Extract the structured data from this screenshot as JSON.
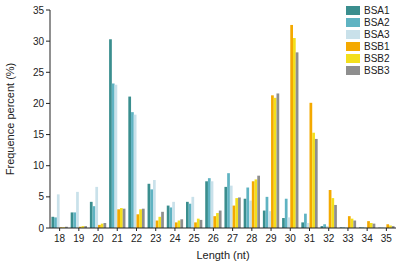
{
  "chart_data": {
    "type": "bar",
    "x_label": "Length (nt)",
    "y_label": "Frequence percent (%)",
    "categories": [
      "18",
      "19",
      "20",
      "21",
      "22",
      "23",
      "24",
      "25",
      "26",
      "27",
      "28",
      "29",
      "30",
      "31",
      "32",
      "33",
      "34",
      "35"
    ],
    "series": [
      {
        "name": "BSA1",
        "color": "#3a8e8e",
        "values": [
          1.8,
          2.5,
          4.2,
          30.3,
          21.1,
          7.1,
          3.6,
          4.2,
          7.5,
          6.6,
          4.7,
          2.8,
          1.6,
          0.9,
          0.3,
          0.1,
          0.1,
          0.05
        ]
      },
      {
        "name": "BSA2",
        "color": "#5fb3c2",
        "values": [
          1.7,
          2.5,
          3.5,
          23.2,
          18.6,
          6.2,
          3.3,
          3.9,
          8.0,
          8.8,
          6.5,
          5.0,
          4.7,
          2.3,
          0.6,
          0.1,
          0.1,
          0.05
        ]
      },
      {
        "name": "BSA3",
        "color": "#c9e1ea",
        "values": [
          5.4,
          5.8,
          6.6,
          23.0,
          18.2,
          7.7,
          4.2,
          5.0,
          7.5,
          6.8,
          4.4,
          2.7,
          1.7,
          0.8,
          0.3,
          0.1,
          0.1,
          0.05
        ]
      },
      {
        "name": "BSB1",
        "color": "#f4a900",
        "values": [
          0.1,
          0.2,
          0.5,
          3.0,
          2.2,
          1.2,
          0.9,
          0.9,
          1.9,
          3.6,
          7.5,
          21.3,
          32.6,
          20.1,
          6.1,
          1.9,
          1.1,
          0.6
        ]
      },
      {
        "name": "BSB2",
        "color": "#f3df1c",
        "values": [
          0.1,
          0.3,
          0.7,
          3.2,
          3.0,
          1.8,
          1.2,
          1.5,
          2.4,
          4.8,
          7.8,
          20.9,
          30.5,
          15.3,
          4.8,
          1.5,
          0.8,
          0.4
        ]
      },
      {
        "name": "BSB3",
        "color": "#8e8e8e",
        "values": [
          0.2,
          0.3,
          0.8,
          3.1,
          3.1,
          2.6,
          1.4,
          1.3,
          2.8,
          4.9,
          8.4,
          21.6,
          28.2,
          14.3,
          3.7,
          1.2,
          0.7,
          0.3
        ]
      }
    ],
    "ylim": [
      0,
      35
    ],
    "yticks": [
      0,
      5,
      10,
      15,
      20,
      25,
      30,
      35
    ],
    "grid": false,
    "legend": "top-right"
  }
}
